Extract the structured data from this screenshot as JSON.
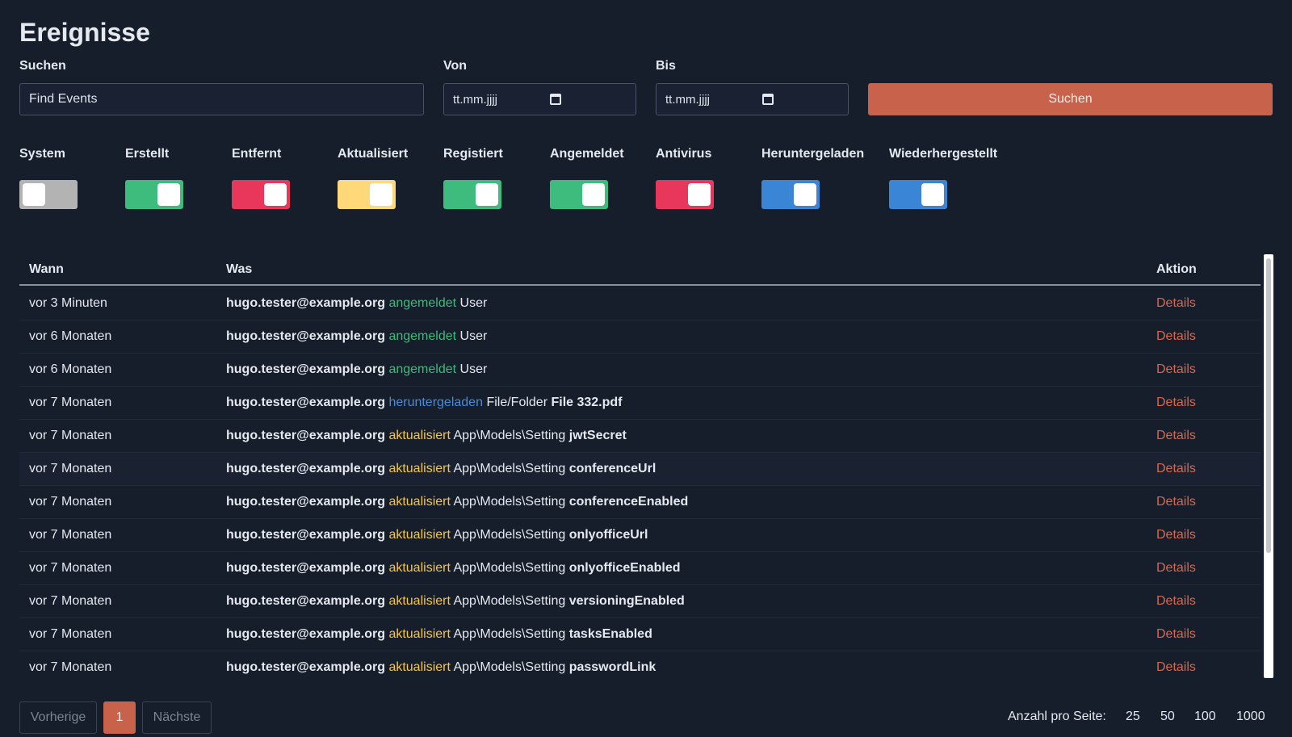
{
  "page": {
    "title": "Ereignisse"
  },
  "search": {
    "label": "Suchen",
    "value": "Find Events",
    "from_label": "Von",
    "from_value": "tt.mm.jjjj",
    "to_label": "Bis",
    "to_value": "tt.mm.jjjj",
    "button_label": "Suchen"
  },
  "filters": [
    {
      "label": "System",
      "on": false,
      "color": "#b3b3b3"
    },
    {
      "label": "Erstellt",
      "on": true,
      "color": "#3ebc7d"
    },
    {
      "label": "Entfernt",
      "on": true,
      "color": "#e8375a"
    },
    {
      "label": "Aktualisiert",
      "on": true,
      "color": "#ffd87a"
    },
    {
      "label": "Registiert",
      "on": true,
      "color": "#3ebc7d"
    },
    {
      "label": "Angemeldet",
      "on": true,
      "color": "#3ebc7d"
    },
    {
      "label": "Antivirus",
      "on": true,
      "color": "#e8375a"
    },
    {
      "label": "Heruntergeladen",
      "on": true,
      "color": "#3a85d6"
    },
    {
      "label": "Wiederhergestellt",
      "on": true,
      "color": "#3a85d6"
    }
  ],
  "table": {
    "headers": {
      "when": "Wann",
      "what": "Was",
      "action": "Aktion"
    },
    "rows": [
      {
        "when": "vor 3 Minuten",
        "user": "hugo.tester@example.org",
        "verb": "angemeldet",
        "type": "User",
        "target": "",
        "action": "Details"
      },
      {
        "when": "vor 6 Monaten",
        "user": "hugo.tester@example.org",
        "verb": "angemeldet",
        "type": "User",
        "target": "",
        "action": "Details"
      },
      {
        "when": "vor 6 Monaten",
        "user": "hugo.tester@example.org",
        "verb": "angemeldet",
        "type": "User",
        "target": "",
        "action": "Details"
      },
      {
        "when": "vor 7 Monaten",
        "user": "hugo.tester@example.org",
        "verb": "heruntergeladen",
        "type": "File/Folder",
        "target": "File 332.pdf",
        "action": "Details"
      },
      {
        "when": "vor 7 Monaten",
        "user": "hugo.tester@example.org",
        "verb": "aktualisiert",
        "type": "App\\Models\\Setting",
        "target": "jwtSecret",
        "action": "Details"
      },
      {
        "when": "vor 7 Monaten",
        "user": "hugo.tester@example.org",
        "verb": "aktualisiert",
        "type": "App\\Models\\Setting",
        "target": "conferenceUrl",
        "action": "Details"
      },
      {
        "when": "vor 7 Monaten",
        "user": "hugo.tester@example.org",
        "verb": "aktualisiert",
        "type": "App\\Models\\Setting",
        "target": "conferenceEnabled",
        "action": "Details"
      },
      {
        "when": "vor 7 Monaten",
        "user": "hugo.tester@example.org",
        "verb": "aktualisiert",
        "type": "App\\Models\\Setting",
        "target": "onlyofficeUrl",
        "action": "Details"
      },
      {
        "when": "vor 7 Monaten",
        "user": "hugo.tester@example.org",
        "verb": "aktualisiert",
        "type": "App\\Models\\Setting",
        "target": "onlyofficeEnabled",
        "action": "Details"
      },
      {
        "when": "vor 7 Monaten",
        "user": "hugo.tester@example.org",
        "verb": "aktualisiert",
        "type": "App\\Models\\Setting",
        "target": "versioningEnabled",
        "action": "Details"
      },
      {
        "when": "vor 7 Monaten",
        "user": "hugo.tester@example.org",
        "verb": "aktualisiert",
        "type": "App\\Models\\Setting",
        "target": "tasksEnabled",
        "action": "Details"
      },
      {
        "when": "vor 7 Monaten",
        "user": "hugo.tester@example.org",
        "verb": "aktualisiert",
        "type": "App\\Models\\Setting",
        "target": "passwordLink",
        "action": "Details"
      }
    ]
  },
  "pagination": {
    "prev_label": "Vorherige",
    "current_page": "1",
    "next_label": "Nächste",
    "per_page_label": "Anzahl pro Seite:",
    "per_page_options": [
      "25",
      "50",
      "100",
      "1000"
    ]
  }
}
